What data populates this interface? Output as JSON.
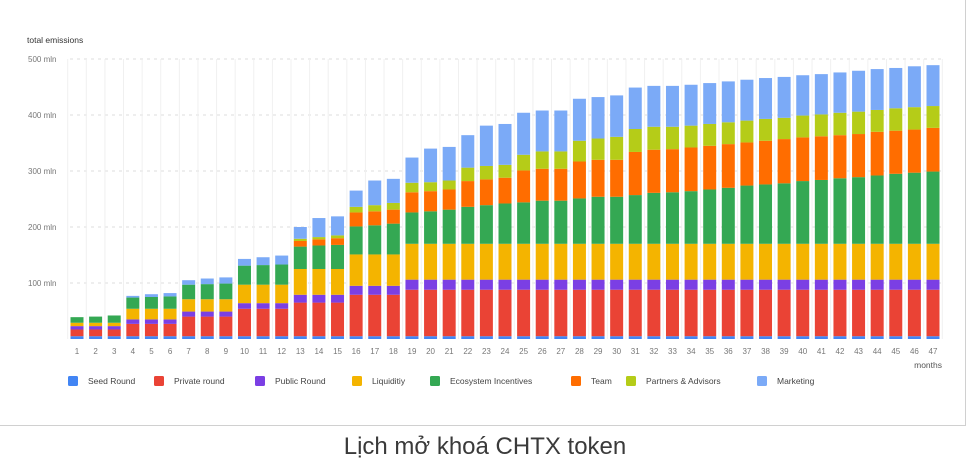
{
  "chart_data": {
    "type": "bar",
    "stacked": true,
    "ylabel": "total emissions",
    "xlabel": "months",
    "ylim": [
      0,
      500
    ],
    "yticks": [
      "",
      "100 mln",
      "200 mln",
      "300 mln",
      "400 mln",
      "500 mln"
    ],
    "ytick_values": [
      0,
      100,
      200,
      300,
      400,
      500
    ],
    "grid": "dashed horizontal and vertical",
    "legend": "bottom",
    "categories": [
      "1",
      "2",
      "3",
      "4",
      "5",
      "6",
      "7",
      "8",
      "9",
      "10",
      "11",
      "12",
      "13",
      "14",
      "15",
      "16",
      "17",
      "18",
      "19",
      "20",
      "21",
      "22",
      "23",
      "24",
      "25",
      "26",
      "27",
      "28",
      "29",
      "30",
      "31",
      "32",
      "33",
      "34",
      "35",
      "36",
      "37",
      "38",
      "39",
      "40",
      "41",
      "42",
      "43",
      "44",
      "45",
      "46",
      "47"
    ],
    "series": [
      {
        "name": "Seed Round",
        "color": "#4285f4",
        "values": [
          5,
          5,
          5,
          5,
          5,
          5,
          5,
          5,
          5,
          5,
          5,
          5,
          5,
          5,
          5,
          5,
          5,
          5,
          5,
          5,
          5,
          5,
          5,
          5,
          5,
          5,
          5,
          5,
          5,
          5,
          5,
          5,
          5,
          5,
          5,
          5,
          5,
          5,
          5,
          5,
          5,
          5,
          5,
          5,
          5,
          5,
          5
        ]
      },
      {
        "name": "Private round",
        "color": "#ea4335",
        "values": [
          12,
          12,
          12,
          22,
          22,
          22,
          35,
          35,
          35,
          49,
          49,
          49,
          60,
          60,
          60,
          74,
          74,
          74,
          83,
          83,
          83,
          83,
          83,
          83,
          83,
          83,
          83,
          83,
          83,
          83,
          83,
          83,
          83,
          83,
          83,
          83,
          83,
          83,
          83,
          83,
          83,
          83,
          83,
          83,
          83,
          83,
          83
        ]
      },
      {
        "name": "Public Round",
        "color": "#7b3fe4",
        "values": [
          6,
          6,
          6,
          8,
          8,
          8,
          9,
          9,
          9,
          10,
          10,
          10,
          14,
          14,
          14,
          16,
          16,
          16,
          18,
          18,
          18,
          18,
          18,
          18,
          18,
          18,
          18,
          18,
          18,
          18,
          18,
          18,
          18,
          18,
          18,
          18,
          18,
          18,
          18,
          18,
          18,
          18,
          18,
          18,
          18,
          18,
          18
        ]
      },
      {
        "name": "Liquiditiy",
        "color": "#f4b400",
        "values": [
          6,
          6,
          6,
          19,
          19,
          19,
          22,
          22,
          22,
          33,
          33,
          33,
          46,
          46,
          46,
          56,
          56,
          56,
          64,
          64,
          64,
          64,
          64,
          64,
          64,
          64,
          64,
          64,
          64,
          64,
          64,
          64,
          64,
          64,
          64,
          64,
          64,
          64,
          64,
          64,
          64,
          64,
          64,
          64,
          64,
          64,
          64
        ]
      },
      {
        "name": "Ecosystem Incentives",
        "color": "#34a853",
        "values": [
          10,
          11,
          13,
          20,
          21,
          22,
          26,
          27,
          28,
          34,
          35,
          36,
          40,
          42,
          43,
          50,
          52,
          55,
          56,
          58,
          61,
          66,
          69,
          72,
          74,
          77,
          77,
          81,
          84,
          84,
          87,
          91,
          92,
          94,
          97,
          100,
          104,
          106,
          108,
          112,
          114,
          117,
          119,
          122,
          125,
          127,
          129
        ]
      },
      {
        "name": "Team",
        "color": "#ff6d00",
        "values": [
          0,
          0,
          0,
          0,
          0,
          0,
          0,
          0,
          0,
          0,
          0,
          0,
          10,
          11,
          12,
          25,
          25,
          25,
          36,
          36,
          36,
          46,
          46,
          46,
          57,
          57,
          57,
          66,
          66,
          66,
          77,
          77,
          77,
          78,
          78,
          78,
          77,
          78,
          79,
          78,
          78,
          77,
          77,
          78,
          77,
          77,
          78
        ]
      },
      {
        "name": "Partners & Advisors",
        "color": "#b5cc18",
        "values": [
          0,
          0,
          0,
          0,
          0,
          0,
          0,
          0,
          0,
          0,
          0,
          0,
          4,
          4,
          5,
          10,
          11,
          12,
          17,
          16,
          16,
          24,
          24,
          23,
          28,
          31,
          31,
          37,
          38,
          41,
          41,
          41,
          40,
          39,
          39,
          39,
          39,
          39,
          38,
          39,
          39,
          40,
          40,
          39,
          40,
          40,
          39
        ]
      },
      {
        "name": "Marketing",
        "color": "#7baaf7",
        "values": [
          0,
          0,
          0,
          3,
          5,
          6,
          8,
          10,
          11,
          12,
          14,
          16,
          21,
          34,
          34,
          29,
          44,
          43,
          45,
          60,
          60,
          58,
          72,
          73,
          75,
          73,
          73,
          75,
          74,
          74,
          74,
          73,
          73,
          73,
          73,
          73,
          73,
          73,
          73,
          72,
          72,
          72,
          73,
          73,
          72,
          73,
          73
        ]
      }
    ]
  },
  "caption": "Lịch mở khoá CHTX token"
}
